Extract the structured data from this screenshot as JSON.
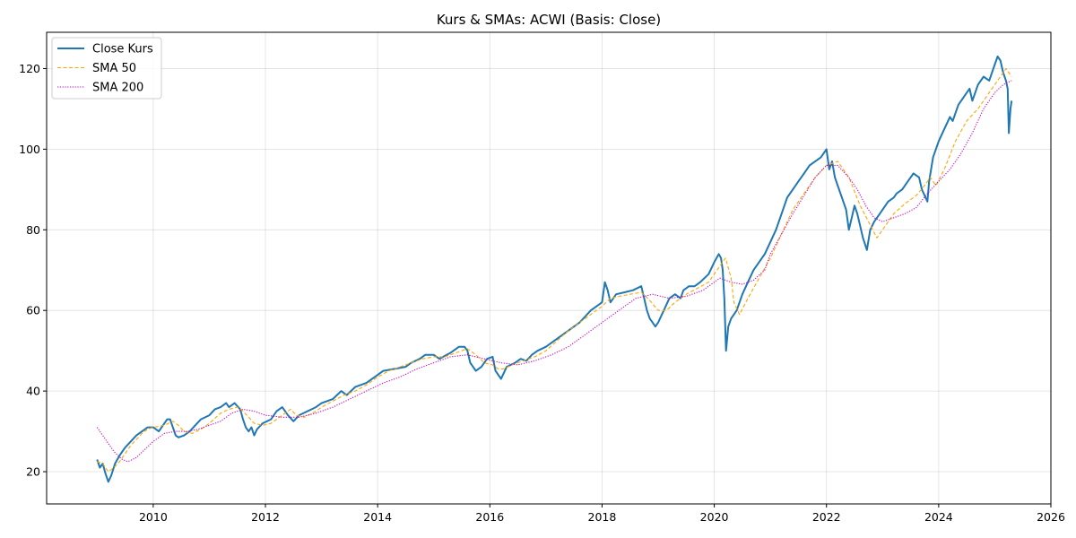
{
  "chart_data": {
    "type": "line",
    "title": "Kurs & SMAs: ACWI (Basis: Close)",
    "xlabel": "",
    "ylabel": "",
    "xlim": [
      2008.1,
      2026.0
    ],
    "ylim": [
      12,
      129
    ],
    "x_ticks": [
      2010,
      2012,
      2014,
      2016,
      2018,
      2020,
      2022,
      2024,
      2026
    ],
    "y_ticks": [
      20,
      40,
      60,
      80,
      100,
      120
    ],
    "grid": true,
    "legend_position": "top-left",
    "series": [
      {
        "name": "Close Kurs",
        "style": "solid",
        "color": "#1f77b4",
        "x": [
          2009.0,
          2009.05,
          2009.1,
          2009.15,
          2009.2,
          2009.25,
          2009.32,
          2009.4,
          2009.5,
          2009.6,
          2009.7,
          2009.8,
          2009.9,
          2010.0,
          2010.1,
          2010.2,
          2010.25,
          2010.3,
          2010.35,
          2010.4,
          2010.45,
          2010.55,
          2010.65,
          2010.75,
          2010.85,
          2011.0,
          2011.1,
          2011.2,
          2011.3,
          2011.35,
          2011.45,
          2011.55,
          2011.6,
          2011.65,
          2011.7,
          2011.75,
          2011.8,
          2011.85,
          2011.95,
          2012.1,
          2012.2,
          2012.3,
          2012.4,
          2012.5,
          2012.6,
          2012.75,
          2012.9,
          2013.0,
          2013.2,
          2013.35,
          2013.45,
          2013.6,
          2013.8,
          2014.0,
          2014.1,
          2014.3,
          2014.5,
          2014.6,
          2014.75,
          2014.85,
          2015.0,
          2015.1,
          2015.3,
          2015.45,
          2015.55,
          2015.6,
          2015.65,
          2015.75,
          2015.85,
          2015.95,
          2016.05,
          2016.1,
          2016.2,
          2016.3,
          2016.45,
          2016.55,
          2016.65,
          2016.75,
          2016.85,
          2017.0,
          2017.2,
          2017.4,
          2017.6,
          2017.8,
          2018.0,
          2018.05,
          2018.1,
          2018.15,
          2018.25,
          2018.4,
          2018.55,
          2018.7,
          2018.75,
          2018.8,
          2018.85,
          2018.9,
          2018.95,
          2019.0,
          2019.1,
          2019.2,
          2019.3,
          2019.4,
          2019.45,
          2019.55,
          2019.65,
          2019.75,
          2019.9,
          2020.0,
          2020.08,
          2020.12,
          2020.15,
          2020.18,
          2020.21,
          2020.25,
          2020.3,
          2020.4,
          2020.5,
          2020.6,
          2020.7,
          2020.8,
          2020.9,
          2021.0,
          2021.1,
          2021.2,
          2021.3,
          2021.4,
          2021.5,
          2021.6,
          2021.7,
          2021.8,
          2021.9,
          2021.95,
          2022.0,
          2022.05,
          2022.1,
          2022.15,
          2022.2,
          2022.3,
          2022.35,
          2022.4,
          2022.45,
          2022.5,
          2022.55,
          2022.65,
          2022.72,
          2022.78,
          2022.85,
          2022.95,
          2023.05,
          2023.1,
          2023.2,
          2023.25,
          2023.35,
          2023.45,
          2023.55,
          2023.65,
          2023.7,
          2023.8,
          2023.83,
          2023.9,
          2024.0,
          2024.1,
          2024.2,
          2024.25,
          2024.35,
          2024.45,
          2024.55,
          2024.6,
          2024.7,
          2024.8,
          2024.9,
          2024.95,
          2025.0,
          2025.05,
          2025.1,
          2025.15,
          2025.2,
          2025.23,
          2025.25,
          2025.28,
          2025.3
        ],
        "values": [
          23,
          21,
          22,
          19.5,
          17.5,
          19,
          22,
          24,
          26,
          27.5,
          29,
          30,
          31,
          31,
          30,
          32,
          33,
          33,
          31,
          29,
          28.5,
          29,
          30,
          31.5,
          33,
          34,
          35.5,
          36,
          37,
          36,
          37,
          35.5,
          33,
          31,
          30,
          31,
          29,
          30.5,
          32,
          33,
          35,
          36,
          34,
          32.5,
          34,
          35,
          36,
          37,
          38,
          40,
          39,
          41,
          42,
          44,
          45,
          45.5,
          46,
          47,
          48,
          49,
          49,
          48,
          49.5,
          51,
          51,
          50,
          47,
          45,
          46,
          48,
          48.5,
          45,
          43,
          46,
          47,
          48,
          47.5,
          49,
          50,
          51,
          53,
          55,
          57,
          60,
          62,
          67,
          65,
          62,
          64,
          64.5,
          65,
          66,
          63,
          60,
          58,
          57,
          56,
          57,
          60,
          63,
          64,
          63,
          65,
          66,
          66,
          67,
          69,
          72,
          74,
          73,
          70,
          63,
          50,
          56,
          58,
          60,
          64,
          67,
          70,
          72,
          74,
          77,
          80,
          84,
          88,
          90,
          92,
          94,
          96,
          97,
          98,
          99,
          100,
          95,
          97,
          93,
          91,
          87,
          85,
          80,
          83,
          86,
          84,
          78,
          75,
          80,
          82,
          84,
          86,
          87,
          88,
          89,
          90,
          92,
          94,
          93,
          90,
          87,
          92,
          98,
          102,
          105,
          108,
          107,
          111,
          113,
          115,
          112,
          116,
          118,
          117,
          119,
          121,
          123,
          122,
          119,
          117,
          115,
          104,
          110,
          112
        ]
      },
      {
        "name": "SMA 50",
        "style": "dashed",
        "color": "#ffa500",
        "x": [
          2009.0,
          2009.1,
          2009.2,
          2009.3,
          2009.4,
          2009.5,
          2009.6,
          2009.7,
          2009.8,
          2009.9,
          2010.0,
          2010.2,
          2010.35,
          2010.45,
          2010.55,
          2010.7,
          2010.85,
          2011.0,
          2011.2,
          2011.35,
          2011.5,
          2011.6,
          2011.7,
          2011.8,
          2011.95,
          2012.1,
          2012.3,
          2012.45,
          2012.55,
          2012.7,
          2012.9,
          2013.0,
          2013.2,
          2013.4,
          2013.6,
          2013.8,
          2014.0,
          2014.2,
          2014.4,
          2014.6,
          2014.8,
          2015.0,
          2015.2,
          2015.4,
          2015.6,
          2015.75,
          2015.9,
          2016.05,
          2016.15,
          2016.25,
          2016.4,
          2016.6,
          2016.8,
          2017.0,
          2017.2,
          2017.4,
          2017.6,
          2017.8,
          2018.0,
          2018.15,
          2018.3,
          2018.5,
          2018.7,
          2018.85,
          2019.0,
          2019.15,
          2019.3,
          2019.5,
          2019.7,
          2019.9,
          2020.05,
          2020.2,
          2020.3,
          2020.35,
          2020.45,
          2020.6,
          2020.8,
          2021.0,
          2021.2,
          2021.4,
          2021.6,
          2021.8,
          2022.0,
          2022.2,
          2022.4,
          2022.6,
          2022.75,
          2022.9,
          2023.05,
          2023.2,
          2023.4,
          2023.6,
          2023.75,
          2023.85,
          2023.95,
          2024.1,
          2024.3,
          2024.5,
          2024.7,
          2024.85,
          2025.0,
          2025.1,
          2025.2,
          2025.3
        ],
        "values": [
          22.5,
          22,
          20,
          21,
          22.5,
          24.5,
          26.5,
          28,
          29.5,
          30.5,
          31,
          31.5,
          32.5,
          31.5,
          30,
          29.5,
          30.5,
          32,
          34.5,
          35.5,
          36,
          35,
          33.5,
          32,
          31.5,
          32,
          34,
          35.5,
          34,
          33.5,
          35,
          36,
          37.5,
          39,
          40,
          41.5,
          43.5,
          45,
          46,
          47,
          48,
          48.5,
          48.5,
          49.5,
          50.5,
          49,
          47,
          46.5,
          45.5,
          45.5,
          46.5,
          47.5,
          48.5,
          50,
          52.5,
          55,
          57,
          59,
          61,
          63,
          63.5,
          64,
          64.5,
          62.5,
          60,
          60,
          62,
          64,
          65.5,
          67,
          70,
          73,
          68,
          62,
          59,
          63,
          68,
          73,
          79,
          85,
          89,
          93,
          96,
          97,
          93,
          86,
          82,
          78,
          81,
          84,
          86.5,
          88.5,
          91,
          93,
          91,
          95,
          102,
          107,
          110,
          113,
          116,
          118,
          120,
          118
        ]
      },
      {
        "name": "SMA 200",
        "style": "dotted",
        "color": "#cc00cc",
        "x": [
          2009.0,
          2009.15,
          2009.3,
          2009.45,
          2009.55,
          2009.7,
          2009.85,
          2010.0,
          2010.2,
          2010.4,
          2010.6,
          2010.8,
          2011.0,
          2011.2,
          2011.4,
          2011.6,
          2011.8,
          2012.0,
          2012.3,
          2012.6,
          2012.9,
          2013.2,
          2013.5,
          2013.8,
          2014.1,
          2014.4,
          2014.7,
          2015.0,
          2015.3,
          2015.6,
          2015.9,
          2016.2,
          2016.5,
          2016.8,
          2017.1,
          2017.4,
          2017.7,
          2018.0,
          2018.3,
          2018.6,
          2018.9,
          2019.2,
          2019.5,
          2019.8,
          2020.1,
          2020.3,
          2020.5,
          2020.7,
          2020.9,
          2021.0,
          2021.2,
          2021.4,
          2021.6,
          2021.8,
          2022.0,
          2022.2,
          2022.4,
          2022.55,
          2022.7,
          2022.85,
          2023.0,
          2023.2,
          2023.4,
          2023.6,
          2023.8,
          2024.0,
          2024.2,
          2024.4,
          2024.6,
          2024.8,
          2025.0,
          2025.15,
          2025.3
        ],
        "values": [
          31,
          28,
          25,
          23,
          22.5,
          23.5,
          25.5,
          27.5,
          29.5,
          30,
          30,
          30.5,
          31.5,
          32.5,
          34.5,
          35.5,
          35,
          34,
          33.5,
          33.5,
          34.5,
          36,
          38,
          40,
          42,
          43.5,
          45.5,
          47,
          48.5,
          49,
          48,
          47,
          46.5,
          47.5,
          49,
          51,
          54,
          57,
          60,
          63,
          64,
          63,
          63.5,
          65,
          68,
          67,
          66.5,
          67.5,
          70,
          74,
          79,
          84,
          88.5,
          93,
          96,
          96,
          93,
          90,
          86,
          83,
          82,
          83,
          84,
          85.5,
          89,
          92,
          95,
          99,
          104,
          110,
          114,
          116,
          117
        ]
      }
    ]
  }
}
